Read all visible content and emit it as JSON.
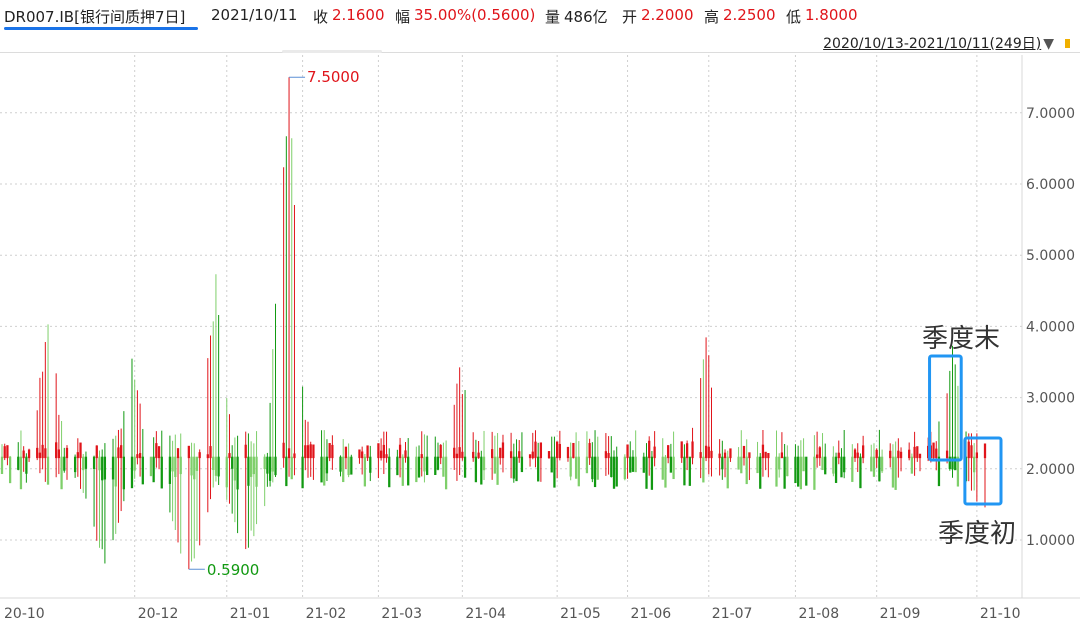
{
  "header": {
    "symbol": "DR007.IB[银行间质押7日]",
    "date": "2021/10/11",
    "close_label": "收",
    "close_value": "2.1600",
    "change_label": "幅",
    "change_value": "35.00%(0.5600)",
    "volume_label": "量",
    "volume_value": "486亿",
    "open_label": "开",
    "open_value": "2.2000",
    "high_label": "高",
    "high_value": "2.2500",
    "low_label": "低",
    "low_value": "1.8000",
    "range_text": "2020/10/13-2021/10/11(249日)",
    "range_arrow": "▼"
  },
  "colors": {
    "up": "#e0141a",
    "down": "#119911",
    "down_light": "#7ecf6a",
    "neutral": "#5b8fd6",
    "highlight_box": "#2196f3",
    "accent_underline": "#1a73e8"
  },
  "annotations": {
    "quarter_end": "季度末",
    "quarter_start": "季度初"
  },
  "chart_data": {
    "type": "candlestick",
    "date_range": [
      "2020-10-13",
      "2021-10-11"
    ],
    "trading_days": 249,
    "ylim": [
      0.5,
      7.7
    ],
    "y_ticks": [
      "1.0000",
      "2.0000",
      "3.0000",
      "4.0000",
      "5.0000",
      "6.0000",
      "7.0000"
    ],
    "y_tick_values": [
      1,
      2,
      3,
      4,
      5,
      6,
      7
    ],
    "x_ticks": [
      "20-10",
      "20-12",
      "21-01",
      "21-02",
      "21-03",
      "21-04",
      "21-05",
      "21-06",
      "21-07",
      "21-08",
      "21-09",
      "21-10"
    ],
    "x_tick_dates": [
      "2020-10-13",
      "2020-12-01",
      "2021-01-04",
      "2021-02-01",
      "2021-03-01",
      "2021-04-01",
      "2021-05-06",
      "2021-06-01",
      "2021-07-01",
      "2021-08-02",
      "2021-09-01",
      "2021-10-08"
    ],
    "max_marker": {
      "label": "7.5000",
      "value": 7.5,
      "date": "2021-01-27"
    },
    "min_marker": {
      "label": "0.5900",
      "value": 0.59,
      "date": "2020-12-21"
    },
    "reference_level": 2.15,
    "grid": true,
    "gridline_style": "dotted",
    "legend": "none",
    "highlights": [
      {
        "label": "季度末",
        "start_date": "2021-09-22",
        "end_date": "2021-09-30"
      },
      {
        "label": "季度初",
        "start_date": "2021-10-08",
        "end_date": "2021-10-11"
      }
    ],
    "last_close": 2.16
  }
}
